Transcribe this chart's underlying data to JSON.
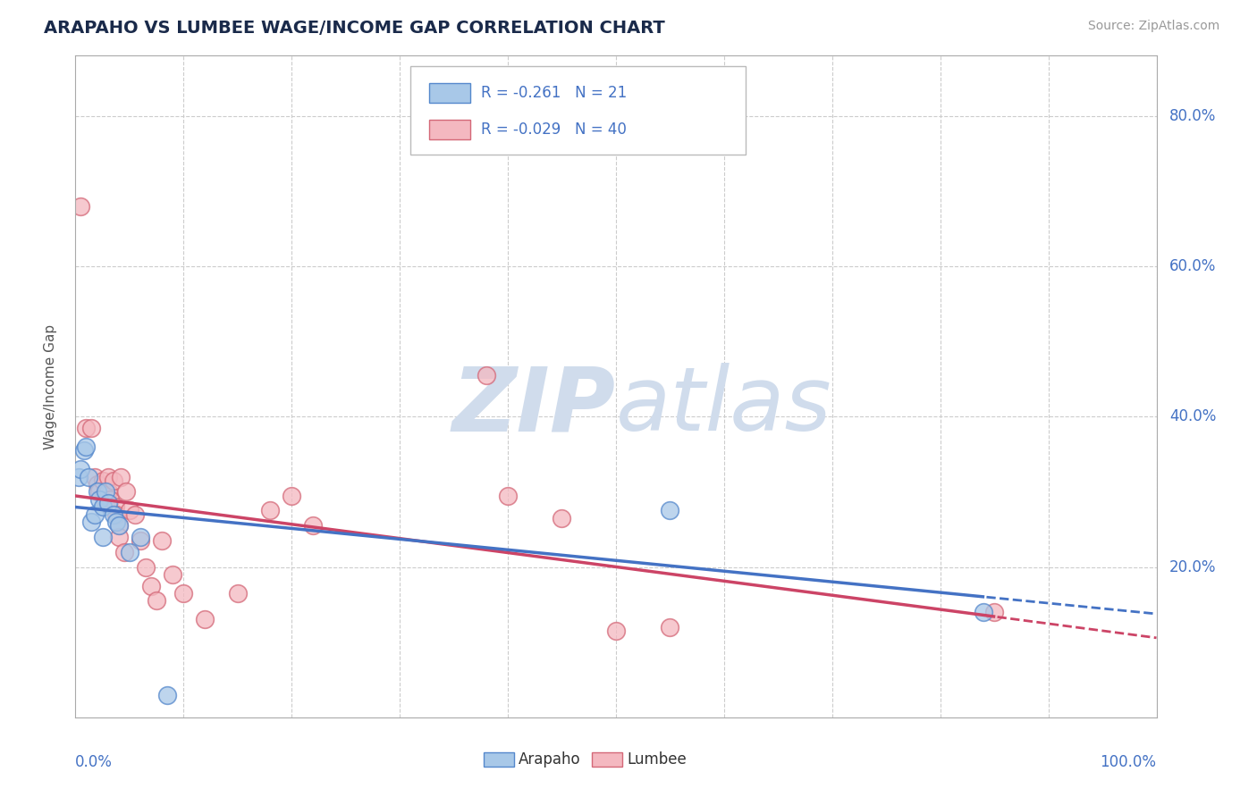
{
  "title": "ARAPAHO VS LUMBEE WAGE/INCOME GAP CORRELATION CHART",
  "source": "Source: ZipAtlas.com",
  "ylabel": "Wage/Income Gap",
  "arapaho_color": "#a8c8e8",
  "lumbee_color": "#f4b8c0",
  "arapaho_edge_color": "#5588cc",
  "lumbee_edge_color": "#d46878",
  "arapaho_line_color": "#4472c4",
  "lumbee_line_color": "#cc4466",
  "background_color": "#ffffff",
  "grid_color": "#cccccc",
  "title_color": "#1a2a4a",
  "axis_label_color": "#4472c4",
  "watermark_color": "#d0dcec",
  "arapaho_points": [
    [
      0.003,
      0.32
    ],
    [
      0.005,
      0.33
    ],
    [
      0.008,
      0.355
    ],
    [
      0.01,
      0.36
    ],
    [
      0.012,
      0.32
    ],
    [
      0.015,
      0.26
    ],
    [
      0.018,
      0.27
    ],
    [
      0.02,
      0.3
    ],
    [
      0.022,
      0.29
    ],
    [
      0.025,
      0.28
    ],
    [
      0.025,
      0.24
    ],
    [
      0.028,
      0.3
    ],
    [
      0.03,
      0.285
    ],
    [
      0.035,
      0.27
    ],
    [
      0.038,
      0.26
    ],
    [
      0.04,
      0.255
    ],
    [
      0.05,
      0.22
    ],
    [
      0.06,
      0.24
    ],
    [
      0.085,
      0.03
    ],
    [
      0.55,
      0.275
    ],
    [
      0.84,
      0.14
    ]
  ],
  "lumbee_points": [
    [
      0.005,
      0.68
    ],
    [
      0.01,
      0.385
    ],
    [
      0.015,
      0.385
    ],
    [
      0.018,
      0.32
    ],
    [
      0.02,
      0.31
    ],
    [
      0.022,
      0.3
    ],
    [
      0.025,
      0.315
    ],
    [
      0.026,
      0.295
    ],
    [
      0.028,
      0.285
    ],
    [
      0.03,
      0.3
    ],
    [
      0.03,
      0.32
    ],
    [
      0.032,
      0.29
    ],
    [
      0.035,
      0.315
    ],
    [
      0.037,
      0.28
    ],
    [
      0.038,
      0.27
    ],
    [
      0.04,
      0.255
    ],
    [
      0.04,
      0.24
    ],
    [
      0.042,
      0.32
    ],
    [
      0.045,
      0.22
    ],
    [
      0.047,
      0.3
    ],
    [
      0.05,
      0.275
    ],
    [
      0.055,
      0.27
    ],
    [
      0.06,
      0.235
    ],
    [
      0.065,
      0.2
    ],
    [
      0.07,
      0.175
    ],
    [
      0.075,
      0.155
    ],
    [
      0.08,
      0.235
    ],
    [
      0.09,
      0.19
    ],
    [
      0.1,
      0.165
    ],
    [
      0.12,
      0.13
    ],
    [
      0.15,
      0.165
    ],
    [
      0.18,
      0.275
    ],
    [
      0.2,
      0.295
    ],
    [
      0.22,
      0.255
    ],
    [
      0.38,
      0.455
    ],
    [
      0.4,
      0.295
    ],
    [
      0.45,
      0.265
    ],
    [
      0.5,
      0.115
    ],
    [
      0.55,
      0.12
    ],
    [
      0.85,
      0.14
    ]
  ],
  "ylim": [
    0.0,
    0.88
  ],
  "ytick_positions": [
    0.0,
    0.2,
    0.4,
    0.6,
    0.8
  ],
  "ytick_labels": [
    "",
    "20.0%",
    "40.0%",
    "60.0%",
    "80.0%"
  ],
  "xlim": [
    0.0,
    1.0
  ],
  "xtick_positions": [
    0.0,
    0.1,
    0.2,
    0.3,
    0.4,
    0.5,
    0.6,
    0.7,
    0.8,
    0.9,
    1.0
  ],
  "legend": {
    "arapaho_R": -0.261,
    "arapaho_N": 21,
    "lumbee_R": -0.029,
    "lumbee_N": 40
  },
  "bottom_legend": [
    "Arapaho",
    "Lumbee"
  ]
}
